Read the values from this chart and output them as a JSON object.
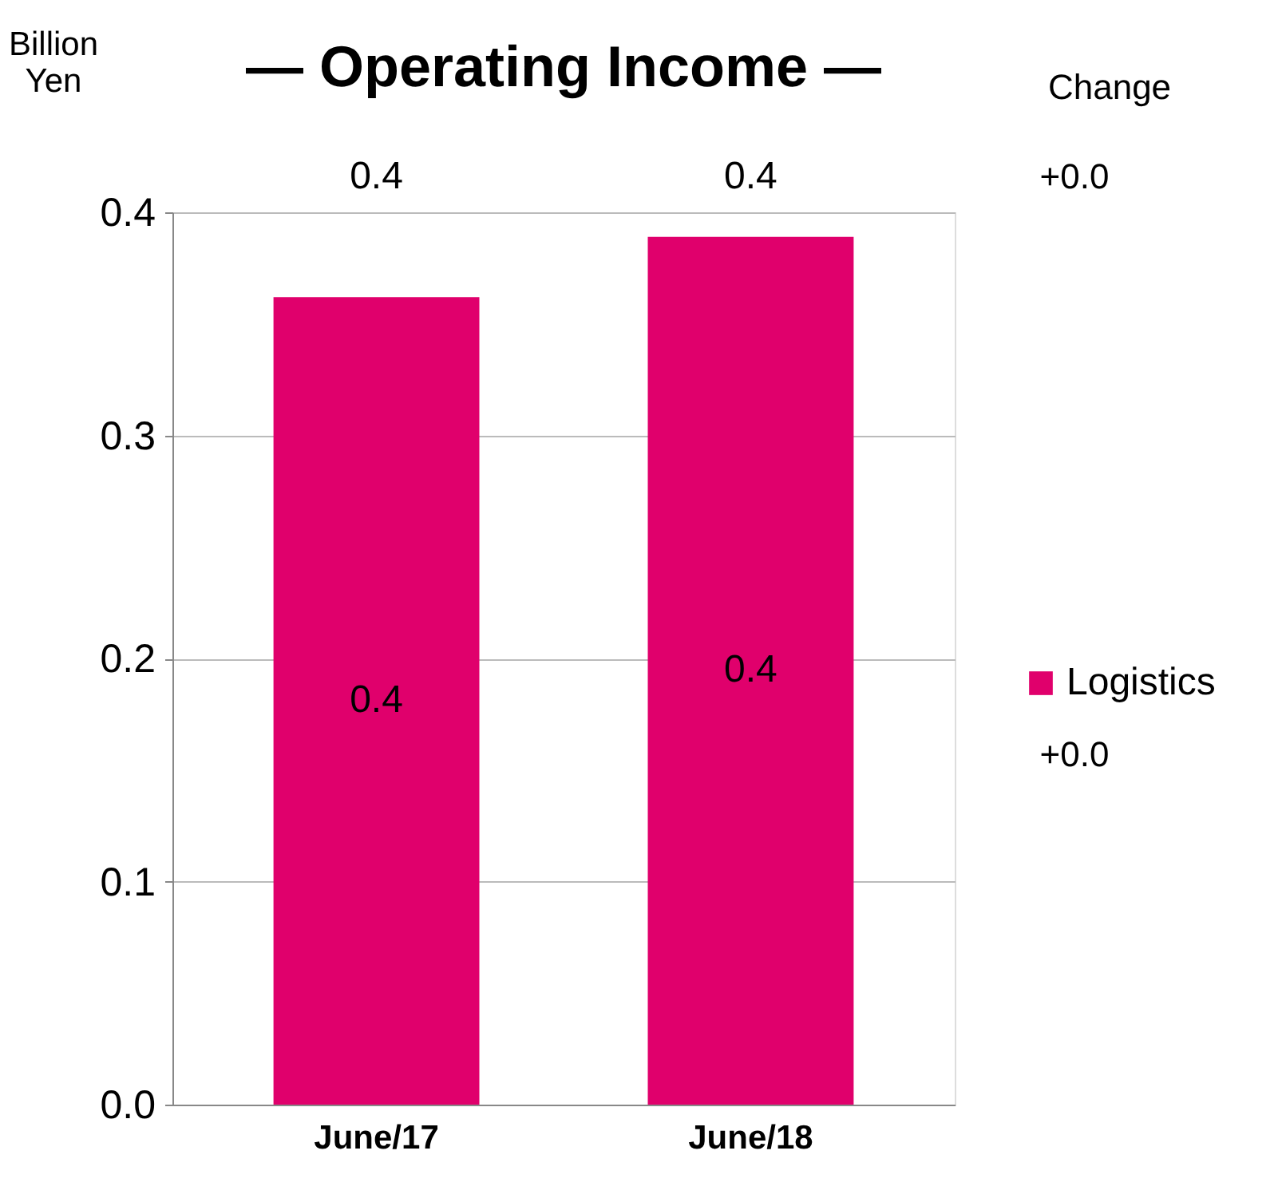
{
  "chart_data": {
    "type": "bar",
    "title": "— Operating Income —",
    "ylabel": "Billion Yen",
    "categories": [
      "June/17",
      "June/18"
    ],
    "series": [
      {
        "name": "Logistics",
        "color": "#e0006c",
        "values": [
          0.362,
          0.389
        ],
        "value_labels": [
          "0.4",
          "0.4"
        ]
      }
    ],
    "totals": [
      "0.4",
      "0.4"
    ],
    "ylim": [
      0,
      0.4
    ],
    "yticks": [
      {
        "value": 0,
        "label": "0.0"
      },
      {
        "value": 0.1,
        "label": "0.1"
      },
      {
        "value": 0.2,
        "label": "0.2"
      },
      {
        "value": 0.3,
        "label": "0.3"
      },
      {
        "value": 0.4,
        "label": "0.4"
      }
    ],
    "grid": "y",
    "legend": "right",
    "annotations": [
      "Change",
      "+0.0",
      "+0.0"
    ]
  }
}
